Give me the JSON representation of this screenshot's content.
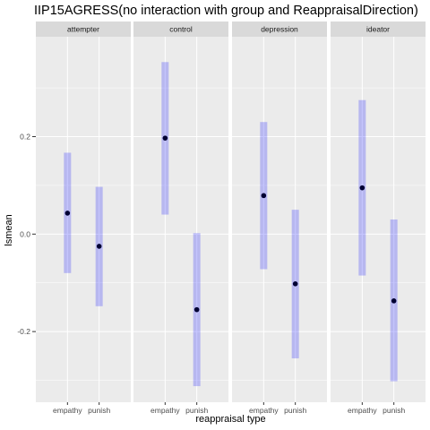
{
  "chart_data": {
    "type": "errorbar",
    "title": "IIP15AGRESS(no interaction with group and ReappraisalDirection)",
    "xlabel": "reappraisal type",
    "ylabel": "lsmean",
    "categories": [
      "empathy",
      "punish"
    ],
    "yticks": [
      -0.2,
      0.0,
      0.2
    ],
    "ytick_labels": [
      "-0.2",
      "0.0",
      "0.2"
    ],
    "ylim": [
      -0.345,
      0.405
    ],
    "grid": true,
    "colors": {
      "panel_bg": "#ebebeb",
      "strip_bg": "#d9d9d9",
      "grid_major": "#ffffff",
      "errorbar": "#0000ff",
      "errorbar_opacity": 0.22,
      "point": "#000033"
    },
    "panels": [
      {
        "label": "attempter",
        "points": [
          {
            "x": "empathy",
            "y": 0.043,
            "lower": -0.08,
            "upper": 0.167
          },
          {
            "x": "punish",
            "y": -0.025,
            "lower": -0.148,
            "upper": 0.097
          }
        ]
      },
      {
        "label": "control",
        "points": [
          {
            "x": "empathy",
            "y": 0.197,
            "lower": 0.04,
            "upper": 0.353
          },
          {
            "x": "punish",
            "y": -0.155,
            "lower": -0.312,
            "upper": 0.002
          }
        ]
      },
      {
        "label": "depression",
        "points": [
          {
            "x": "empathy",
            "y": 0.079,
            "lower": -0.072,
            "upper": 0.23
          },
          {
            "x": "punish",
            "y": -0.102,
            "lower": -0.255,
            "upper": 0.05
          }
        ]
      },
      {
        "label": "ideator",
        "points": [
          {
            "x": "empathy",
            "y": 0.095,
            "lower": -0.085,
            "upper": 0.275
          },
          {
            "x": "punish",
            "y": -0.137,
            "lower": -0.302,
            "upper": 0.03
          }
        ]
      }
    ]
  }
}
